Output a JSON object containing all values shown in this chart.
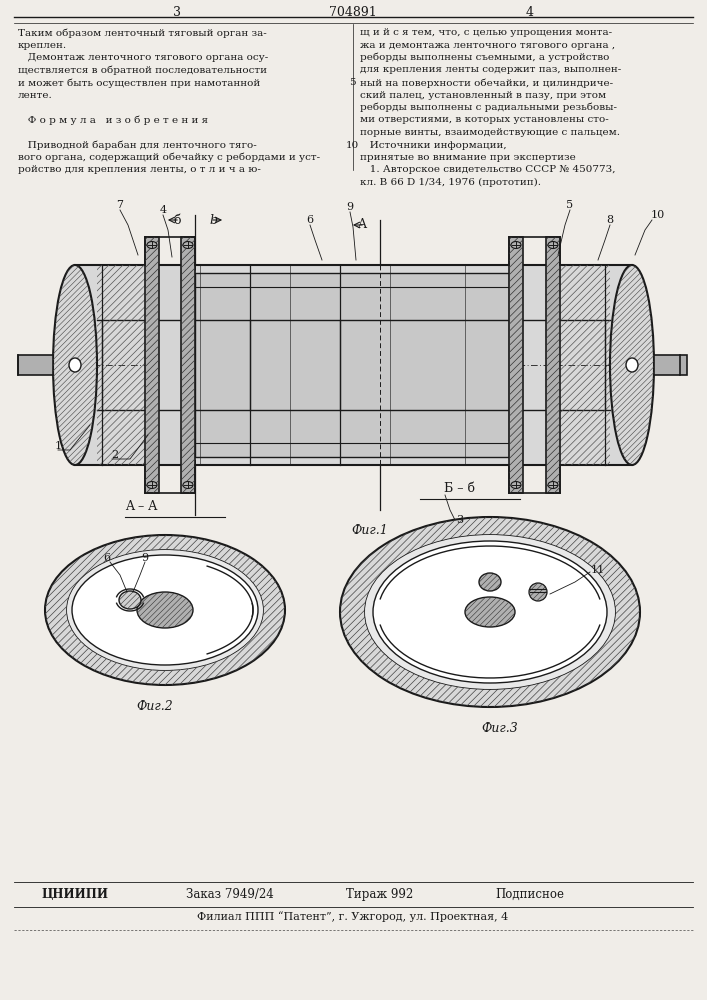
{
  "page_width": 7.07,
  "page_height": 10.0,
  "bg_color": "#f0ede8",
  "header_num_left": "3",
  "header_patent": "704891",
  "header_num_right": "4",
  "text_col1": [
    "Таким образом ленточный тяговый орган за-",
    "креплен.",
    "   Демонтаж ленточного тягового органа осу-",
    "ществляется в обратной последовательности",
    "и может быть осуществлен при намотанной",
    "ленте.",
    "",
    "   Ф о р м у л а   и з о б р е т е н и я",
    "",
    "   Приводной барабан для ленточного тяго-",
    "вого органа, содержащий обечайку с ребордами и уст-",
    "ройство для крепления ленты, о т л и ч а ю-"
  ],
  "text_col2": [
    "щ и й с я тем, что, с целью упрощения монта-",
    "жа и демонтажа ленточного тягового органа ,",
    "реборды выполнены съемными, а устройство",
    "для крепления ленты содержит паз, выполнен-",
    "ный на поверхности обечайки, и цилиндриче-",
    "ский палец, установленный в пазу, при этом",
    "реборды выполнены с радиальными резьбовы-",
    "ми отверстиями, в которых установлены сто-",
    "порные винты, взаимодействующие с пальцем.",
    "   Источники информации,",
    "принятые во внимание при экспертизе",
    "   1. Авторское свидетельство СССР № 450773,",
    "кл. B 66 D 1/34, 1976 (прототип)."
  ],
  "linenum_5": "5",
  "linenum_10": "10",
  "footer_org": "ЦНИИПИ",
  "footer_order": "Заказ 7949/24",
  "footer_circ": "Тираж 992",
  "footer_sub": "Подписное",
  "footer_branch": "Филиал ППП “Патент”, г. Ужгород, ул. Проектная, 4",
  "fig1_label": "Фиг.1",
  "fig2_label": "Фиг.2",
  "fig3_label": "Фиг.3"
}
